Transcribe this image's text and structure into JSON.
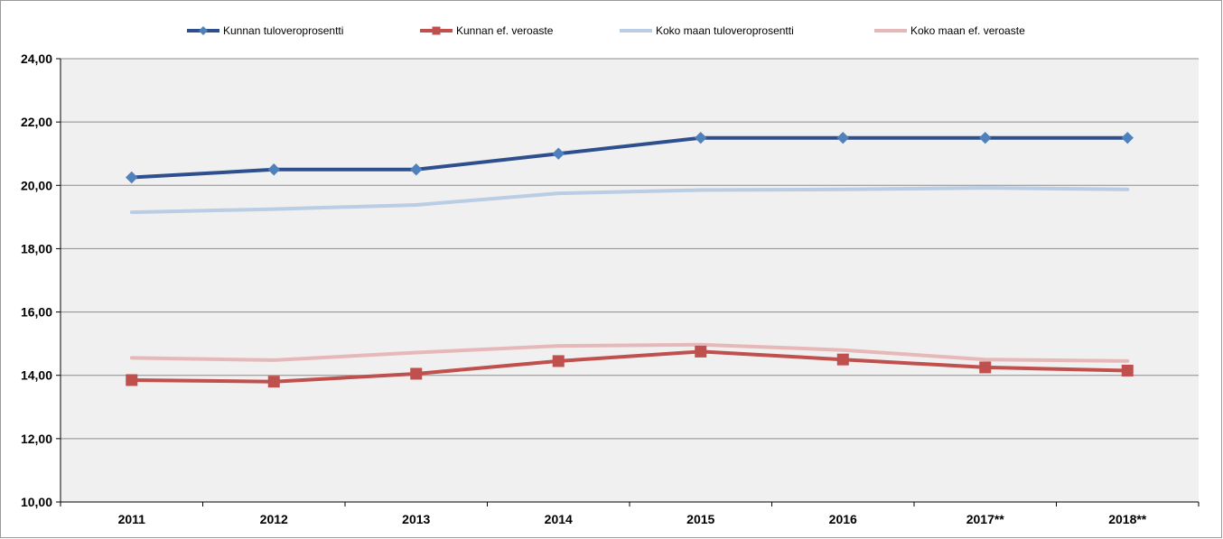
{
  "chart_data": {
    "type": "line",
    "categories": [
      "2011",
      "2012",
      "2013",
      "2014",
      "2015",
      "2016",
      "2017**",
      "2018**"
    ],
    "ylim": [
      10,
      24
    ],
    "yticks": [
      "10,00",
      "12,00",
      "14,00",
      "16,00",
      "18,00",
      "20,00",
      "22,00",
      "24,00"
    ],
    "grid": "horizontal",
    "legend_position": "top",
    "series": [
      {
        "name": "Kunnan tuloveroprosentti",
        "color": "#2E4F8E",
        "marker": "diamond",
        "marker_color": "#4F81BD",
        "values": [
          20.25,
          20.5,
          20.5,
          21.0,
          21.5,
          21.5,
          21.5,
          21.5
        ]
      },
      {
        "name": "Kunnan ef. veroaste",
        "color": "#C0504D",
        "marker": "square",
        "marker_color": "#C0504D",
        "values": [
          13.85,
          13.8,
          14.05,
          14.45,
          14.75,
          14.5,
          14.25,
          14.15
        ]
      },
      {
        "name": "Koko maan tuloveroprosentti",
        "color": "#B9CDE5",
        "marker": "none",
        "values": [
          19.15,
          19.25,
          19.38,
          19.75,
          19.85,
          19.87,
          19.92,
          19.87
        ]
      },
      {
        "name": "Koko maan ef. veroaste",
        "color": "#E6B9B8",
        "marker": "none",
        "values": [
          14.55,
          14.48,
          14.72,
          14.93,
          14.97,
          14.8,
          14.5,
          14.45
        ]
      }
    ]
  }
}
